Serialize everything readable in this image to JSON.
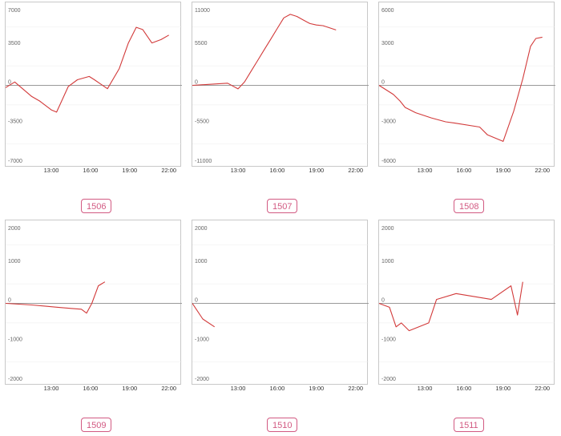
{
  "chart_data": [
    {
      "type": "line",
      "badge": "1506",
      "y_ticks": [
        7000,
        3500,
        0,
        -3500,
        -7000
      ],
      "ylim": [
        -7000,
        7000
      ],
      "x_tick_labels": [
        "13:00",
        "16:00",
        "19:00",
        "22:00"
      ],
      "x_tick_hours": [
        13,
        16,
        19,
        22
      ],
      "xlim_hours": [
        9.5,
        23
      ],
      "color": "#d23a3a",
      "x": [
        9.5,
        10.2,
        11.5,
        12.1,
        13,
        13.4,
        14.3,
        15,
        15.9,
        16.3,
        17.3,
        18.2,
        18.9,
        19.5,
        20,
        20.7,
        21.4,
        22
      ],
      "y": [
        -200,
        300,
        -1000,
        -1400,
        -2200,
        -2400,
        -100,
        500,
        800,
        500,
        -300,
        1500,
        3800,
        5200,
        5000,
        3800,
        4100,
        4500
      ]
    },
    {
      "type": "line",
      "badge": "1507",
      "y_ticks": [
        11000,
        5500,
        0,
        -5500,
        -11000
      ],
      "ylim": [
        -11000,
        11000
      ],
      "x_tick_labels": [
        "13:00",
        "16:00",
        "19:00",
        "22:00"
      ],
      "x_tick_hours": [
        13,
        16,
        19,
        22
      ],
      "xlim_hours": [
        9.5,
        23
      ],
      "color": "#d23a3a",
      "x": [
        9.5,
        12.2,
        13,
        13.5,
        14,
        14.5,
        15,
        15.5,
        16,
        16.5,
        17,
        17.5,
        18,
        18.5,
        19,
        19.5,
        20.5
      ],
      "y": [
        0,
        300,
        -500,
        500,
        2000,
        3500,
        5000,
        6500,
        8000,
        9500,
        10000,
        9700,
        9200,
        8700,
        8500,
        8400,
        7800
      ]
    },
    {
      "type": "line",
      "badge": "1508",
      "y_ticks": [
        6000,
        3000,
        0,
        -3000,
        -6000
      ],
      "ylim": [
        -6000,
        6000
      ],
      "x_tick_labels": [
        "13:00",
        "16:00",
        "19:00",
        "22:00"
      ],
      "x_tick_hours": [
        13,
        16,
        19,
        22
      ],
      "xlim_hours": [
        9.5,
        23
      ],
      "color": "#d23a3a",
      "x": [
        9.5,
        10.6,
        11.1,
        11.5,
        12.3,
        13.5,
        14.6,
        15.3,
        17.2,
        17.8,
        19,
        19.8,
        20.5,
        21.1,
        21.5,
        22
      ],
      "y": [
        0,
        -700,
        -1200,
        -1700,
        -2100,
        -2500,
        -2800,
        -2900,
        -3200,
        -3800,
        -4300,
        -2000,
        500,
        3000,
        3600,
        3700
      ]
    },
    {
      "type": "line",
      "badge": "1509",
      "y_ticks": [
        2000,
        1000,
        0,
        -1000,
        -2000
      ],
      "ylim": [
        -2000,
        2000
      ],
      "x_tick_labels": [
        "13:00",
        "16:00",
        "19:00",
        "22:00"
      ],
      "x_tick_hours": [
        13,
        16,
        19,
        22
      ],
      "xlim_hours": [
        9.5,
        23
      ],
      "color": "#d23a3a",
      "x": [
        9.5,
        10.5,
        11.5,
        12.5,
        13.5,
        14.5,
        15.3,
        15.7,
        16.1,
        16.6,
        17.1
      ],
      "y": [
        0,
        -20,
        -40,
        -70,
        -100,
        -130,
        -150,
        -250,
        0,
        450,
        550
      ]
    },
    {
      "type": "line",
      "badge": "1510",
      "y_ticks": [
        2000,
        1000,
        0,
        -1000,
        -2000
      ],
      "ylim": [
        -2000,
        2000
      ],
      "x_tick_labels": [
        "13:00",
        "16:00",
        "19:00",
        "22:00"
      ],
      "x_tick_hours": [
        13,
        16,
        19,
        22
      ],
      "xlim_hours": [
        9.5,
        23
      ],
      "color": "#d23a3a",
      "x": [
        9.5,
        10.3,
        11.2
      ],
      "y": [
        0,
        -400,
        -600
      ]
    },
    {
      "type": "line",
      "badge": "1511",
      "y_ticks": [
        2000,
        1000,
        0,
        -1000,
        -2000
      ],
      "ylim": [
        -2000,
        2000
      ],
      "x_tick_labels": [
        "13:00",
        "16:00",
        "19:00",
        "22:00"
      ],
      "x_tick_hours": [
        13,
        16,
        19,
        22
      ],
      "xlim_hours": [
        9.5,
        23
      ],
      "color": "#d23a3a",
      "x": [
        9.5,
        10.3,
        10.8,
        11.2,
        11.8,
        13.3,
        13.9,
        15.4,
        18.1,
        19.6,
        20.1,
        20.5
      ],
      "y": [
        0,
        -100,
        -600,
        -500,
        -700,
        -500,
        100,
        250,
        100,
        450,
        -300,
        550
      ]
    }
  ]
}
